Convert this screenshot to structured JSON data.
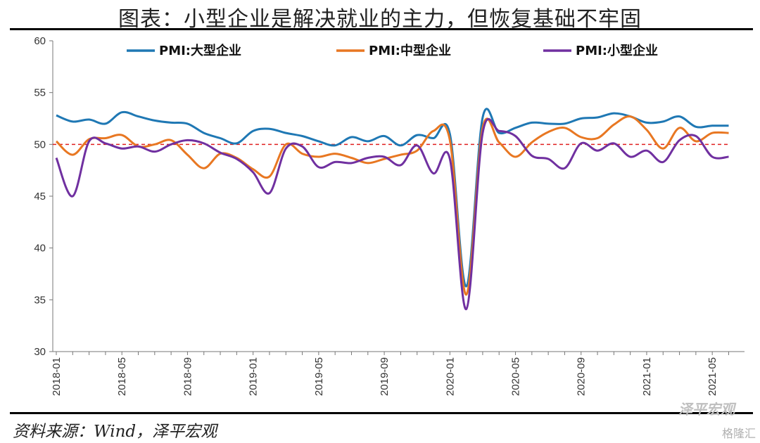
{
  "title": "图表：小型企业是解决就业的主力，但恢复基础不牢固",
  "source": "资料来源：Wind，泽平宏观",
  "watermark": "泽平宏观",
  "watermark2": "格隆汇",
  "chart_data": {
    "type": "line",
    "ylim": [
      30,
      60
    ],
    "yticks": [
      30,
      35,
      40,
      45,
      50,
      55,
      60
    ],
    "x_tick_labels": [
      "2018-01",
      "2018-05",
      "2018-09",
      "2019-01",
      "2019-05",
      "2019-09",
      "2020-01",
      "2020-05",
      "2020-09",
      "2021-01",
      "2021-05"
    ],
    "x": [
      "2018-01",
      "2018-02",
      "2018-03",
      "2018-04",
      "2018-05",
      "2018-06",
      "2018-07",
      "2018-08",
      "2018-09",
      "2018-10",
      "2018-11",
      "2018-12",
      "2019-01",
      "2019-02",
      "2019-03",
      "2019-04",
      "2019-05",
      "2019-06",
      "2019-07",
      "2019-08",
      "2019-09",
      "2019-10",
      "2019-11",
      "2019-12",
      "2020-01",
      "2020-02",
      "2020-03",
      "2020-04",
      "2020-05",
      "2020-06",
      "2020-07",
      "2020-08",
      "2020-09",
      "2020-10",
      "2020-11",
      "2020-12",
      "2021-01",
      "2021-02",
      "2021-03",
      "2021-04",
      "2021-05",
      "2021-06"
    ],
    "reference_line": 50,
    "legend_position": "top",
    "series": [
      {
        "name": "PMI:大型企业",
        "color": "#1f78b4",
        "values": [
          52.8,
          52.2,
          52.4,
          52.0,
          53.1,
          52.7,
          52.3,
          52.1,
          52.0,
          51.1,
          50.6,
          50.1,
          51.3,
          51.5,
          51.1,
          50.8,
          50.3,
          49.9,
          50.7,
          50.3,
          50.8,
          49.9,
          50.9,
          50.6,
          51.0,
          36.3,
          52.6,
          51.1,
          51.6,
          52.1,
          52.0,
          52.0,
          52.5,
          52.6,
          53.0,
          52.7,
          52.1,
          52.2,
          52.7,
          51.7,
          51.8,
          51.8
        ]
      },
      {
        "name": "PMI:中型企业",
        "color": "#e87722",
        "values": [
          50.3,
          49.0,
          50.5,
          50.6,
          50.9,
          49.8,
          50.0,
          50.4,
          49.0,
          47.7,
          49.1,
          48.7,
          47.6,
          46.9,
          50.0,
          49.1,
          48.8,
          49.1,
          48.7,
          48.2,
          48.6,
          49.0,
          49.4,
          51.3,
          50.4,
          35.5,
          51.6,
          50.2,
          48.8,
          50.2,
          51.2,
          51.6,
          50.7,
          50.6,
          51.9,
          52.7,
          51.4,
          49.6,
          51.6,
          50.3,
          51.1,
          51.1
        ]
      },
      {
        "name": "PMI:小型企业",
        "color": "#7030a0",
        "values": [
          48.7,
          45.0,
          50.3,
          50.1,
          49.6,
          49.8,
          49.3,
          50.0,
          50.4,
          50.1,
          49.2,
          48.6,
          47.3,
          45.3,
          49.6,
          49.8,
          47.8,
          48.3,
          48.2,
          48.7,
          48.8,
          48.0,
          49.9,
          47.2,
          48.6,
          34.1,
          51.1,
          51.3,
          50.8,
          48.9,
          48.6,
          47.7,
          50.1,
          49.4,
          50.1,
          48.8,
          49.4,
          48.3,
          50.4,
          50.8,
          48.8,
          48.8
        ]
      }
    ]
  }
}
